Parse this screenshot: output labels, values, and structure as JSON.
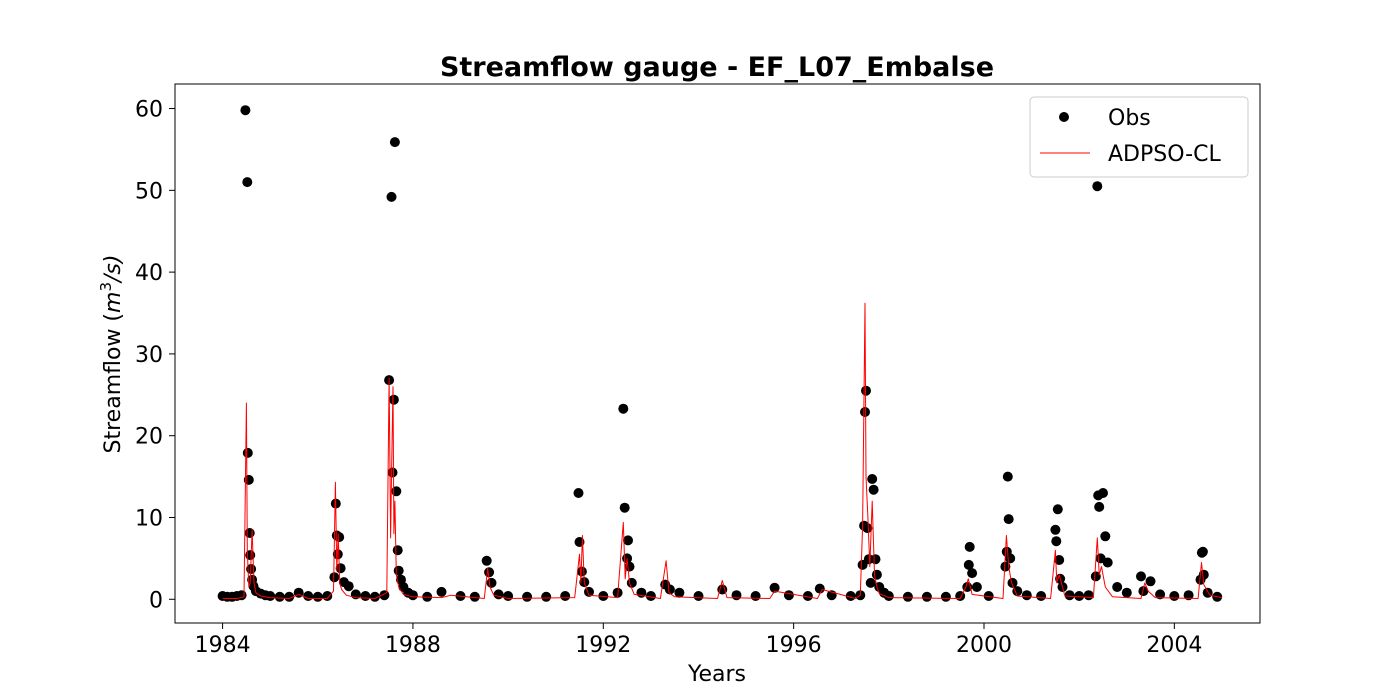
{
  "chart_data": {
    "type": "scatter",
    "title": "Streamflow gauge - EF_L07_Embalse",
    "xlabel": "Years",
    "ylabel": "Streamflow (m³/s)",
    "ylabel_parts": {
      "prefix": "Streamflow (",
      "var": "m",
      "sup": "3",
      "suffix": "/s)"
    },
    "xlim": [
      1983.0,
      2005.8
    ],
    "ylim": [
      -2.9,
      63
    ],
    "x_ticks": [
      1984,
      1988,
      1992,
      1996,
      2000,
      2004
    ],
    "x_tick_labels": [
      "1984",
      "1988",
      "1992",
      "1996",
      "2000",
      "2004"
    ],
    "y_ticks": [
      0,
      10,
      20,
      30,
      40,
      50,
      60
    ],
    "y_tick_labels": [
      "0",
      "10",
      "20",
      "30",
      "40",
      "50",
      "60"
    ],
    "legend_position": "top-right",
    "grid": false,
    "colors": {
      "obs": "#000000",
      "sim": "#ff0000"
    },
    "series": [
      {
        "name": "Obs",
        "style": "markers",
        "x": [
          1984.0,
          1984.1,
          1984.2,
          1984.3,
          1984.4,
          1984.48,
          1984.52,
          1984.53,
          1984.55,
          1984.57,
          1984.58,
          1984.6,
          1984.62,
          1984.65,
          1984.7,
          1984.8,
          1984.9,
          1985.0,
          1985.2,
          1985.4,
          1985.6,
          1985.8,
          1986.0,
          1986.2,
          1986.35,
          1986.38,
          1986.4,
          1986.42,
          1986.45,
          1986.48,
          1986.55,
          1986.65,
          1986.8,
          1987.0,
          1987.2,
          1987.4,
          1987.5,
          1987.55,
          1987.57,
          1987.6,
          1987.62,
          1987.65,
          1987.68,
          1987.7,
          1987.75,
          1987.8,
          1987.9,
          1988.0,
          1988.3,
          1988.6,
          1989.0,
          1989.3,
          1989.55,
          1989.6,
          1989.65,
          1989.8,
          1990.0,
          1990.4,
          1990.8,
          1991.2,
          1991.48,
          1991.5,
          1991.55,
          1991.6,
          1991.7,
          1992.0,
          1992.3,
          1992.42,
          1992.45,
          1992.5,
          1992.52,
          1992.55,
          1992.6,
          1992.8,
          1993.0,
          1993.3,
          1993.4,
          1993.6,
          1994.0,
          1994.5,
          1994.8,
          1995.2,
          1995.6,
          1995.9,
          1996.3,
          1996.55,
          1996.8,
          1997.2,
          1997.4,
          1997.45,
          1997.48,
          1997.5,
          1997.52,
          1997.55,
          1997.58,
          1997.62,
          1997.65,
          1997.68,
          1997.72,
          1997.75,
          1997.8,
          1997.9,
          1998.0,
          1998.4,
          1998.8,
          1999.2,
          1999.5,
          1999.65,
          1999.68,
          1999.7,
          1999.75,
          1999.85,
          2000.1,
          2000.45,
          2000.48,
          2000.5,
          2000.52,
          2000.55,
          2000.6,
          2000.7,
          2000.9,
          2001.2,
          2001.5,
          2001.52,
          2001.55,
          2001.58,
          2001.6,
          2001.65,
          2001.8,
          2002.0,
          2002.2,
          2002.35,
          2002.38,
          2002.4,
          2002.42,
          2002.45,
          2002.5,
          2002.55,
          2002.6,
          2002.8,
          2003.0,
          2003.3,
          2003.35,
          2003.5,
          2003.7,
          2004.0,
          2004.3,
          2004.55,
          2004.58,
          2004.6,
          2004.62,
          2004.7,
          2004.9
        ],
        "y": [
          0.4,
          0.3,
          0.3,
          0.4,
          0.5,
          59.8,
          51.0,
          17.9,
          14.6,
          8.1,
          5.4,
          3.7,
          2.4,
          1.6,
          1.0,
          0.7,
          0.5,
          0.4,
          0.3,
          0.3,
          0.8,
          0.4,
          0.3,
          0.4,
          2.7,
          11.7,
          7.8,
          5.5,
          7.6,
          3.8,
          2.1,
          1.6,
          0.6,
          0.4,
          0.3,
          0.5,
          26.8,
          49.2,
          15.5,
          24.4,
          55.9,
          13.2,
          6.0,
          3.5,
          2.4,
          1.5,
          0.8,
          0.5,
          0.3,
          0.9,
          0.4,
          0.3,
          4.7,
          3.3,
          2.0,
          0.6,
          0.4,
          0.3,
          0.3,
          0.4,
          13.0,
          7.0,
          3.4,
          2.1,
          0.9,
          0.4,
          0.8,
          23.3,
          11.2,
          5.0,
          7.2,
          4.0,
          2.0,
          0.8,
          0.4,
          1.8,
          1.2,
          0.8,
          0.4,
          1.2,
          0.5,
          0.4,
          1.4,
          0.5,
          0.4,
          1.3,
          0.5,
          0.4,
          0.5,
          4.2,
          9.0,
          22.9,
          25.5,
          8.7,
          4.9,
          2.0,
          14.7,
          13.4,
          4.9,
          3.0,
          1.5,
          0.8,
          0.4,
          0.3,
          0.3,
          0.3,
          0.4,
          1.5,
          4.2,
          6.4,
          3.2,
          1.5,
          0.4,
          4.0,
          5.8,
          15.0,
          9.8,
          5.0,
          2.0,
          1.0,
          0.5,
          0.4,
          8.5,
          7.1,
          11.0,
          4.8,
          2.5,
          1.5,
          0.5,
          0.4,
          0.5,
          2.8,
          50.5,
          12.7,
          11.3,
          5.0,
          13.0,
          7.7,
          4.5,
          1.5,
          0.8,
          2.8,
          1.0,
          2.2,
          0.6,
          0.4,
          0.5,
          2.4,
          5.7,
          5.8,
          3.0,
          0.8,
          0.3
        ]
      },
      {
        "name": "ADPSO-CL",
        "style": "line",
        "x": [
          1984.0,
          1984.3,
          1984.45,
          1984.5,
          1984.52,
          1984.55,
          1984.58,
          1984.62,
          1984.66,
          1984.7,
          1984.8,
          1985.0,
          1985.4,
          1985.6,
          1985.8,
          1986.2,
          1986.33,
          1986.37,
          1986.4,
          1986.43,
          1986.46,
          1986.5,
          1986.6,
          1986.8,
          1987.2,
          1987.45,
          1987.5,
          1987.53,
          1987.55,
          1987.58,
          1987.6,
          1987.62,
          1987.65,
          1987.7,
          1987.8,
          1988.0,
          1988.6,
          1988.8,
          1989.5,
          1989.57,
          1989.62,
          1989.7,
          1990.0,
          1991.4,
          1991.5,
          1991.53,
          1991.56,
          1991.6,
          1991.7,
          1992.3,
          1992.42,
          1992.46,
          1992.5,
          1992.55,
          1992.65,
          1993.2,
          1993.32,
          1993.38,
          1993.5,
          1994.4,
          1994.5,
          1994.6,
          1995.5,
          1995.6,
          1996.5,
          1996.6,
          1997.3,
          1997.4,
          1997.45,
          1997.5,
          1997.52,
          1997.56,
          1997.6,
          1997.65,
          1997.7,
          1997.75,
          1997.8,
          1998.0,
          1999.5,
          1999.62,
          1999.67,
          1999.75,
          2000.4,
          2000.47,
          2000.52,
          2000.58,
          2000.7,
          2001.4,
          2001.5,
          2001.53,
          2001.58,
          2001.7,
          2002.3,
          2002.38,
          2002.42,
          2002.47,
          2002.55,
          2002.7,
          2003.3,
          2003.38,
          2003.45,
          2003.6,
          2004.5,
          2004.57,
          2004.62,
          2004.75,
          2005.0
        ],
        "y": [
          0.1,
          0.1,
          0.3,
          24.0,
          6.0,
          1.5,
          2.0,
          8.5,
          2.0,
          0.8,
          0.4,
          0.2,
          0.1,
          0.6,
          0.1,
          0.1,
          1.0,
          14.3,
          3.5,
          8.0,
          2.0,
          1.2,
          0.5,
          0.2,
          0.1,
          0.8,
          27.0,
          7.5,
          15.0,
          26.0,
          8.0,
          12.0,
          3.0,
          1.5,
          0.6,
          0.3,
          0.2,
          0.5,
          0.1,
          3.8,
          1.5,
          0.5,
          0.1,
          0.2,
          5.5,
          2.0,
          7.8,
          2.0,
          0.5,
          0.2,
          9.4,
          2.5,
          5.0,
          2.0,
          0.6,
          0.1,
          4.7,
          0.8,
          0.3,
          0.1,
          2.3,
          0.2,
          0.1,
          1.0,
          0.1,
          1.2,
          0.1,
          0.5,
          9.0,
          36.2,
          15.0,
          10.0,
          4.0,
          12.0,
          3.0,
          1.5,
          0.7,
          0.2,
          0.1,
          1.5,
          2.5,
          0.6,
          0.1,
          7.8,
          4.0,
          2.0,
          0.4,
          0.1,
          6.0,
          2.0,
          3.0,
          0.4,
          0.2,
          7.5,
          3.0,
          4.0,
          1.5,
          0.3,
          0.1,
          2.0,
          1.0,
          0.2,
          0.1,
          4.5,
          1.8,
          0.5,
          0.2
        ]
      }
    ]
  }
}
